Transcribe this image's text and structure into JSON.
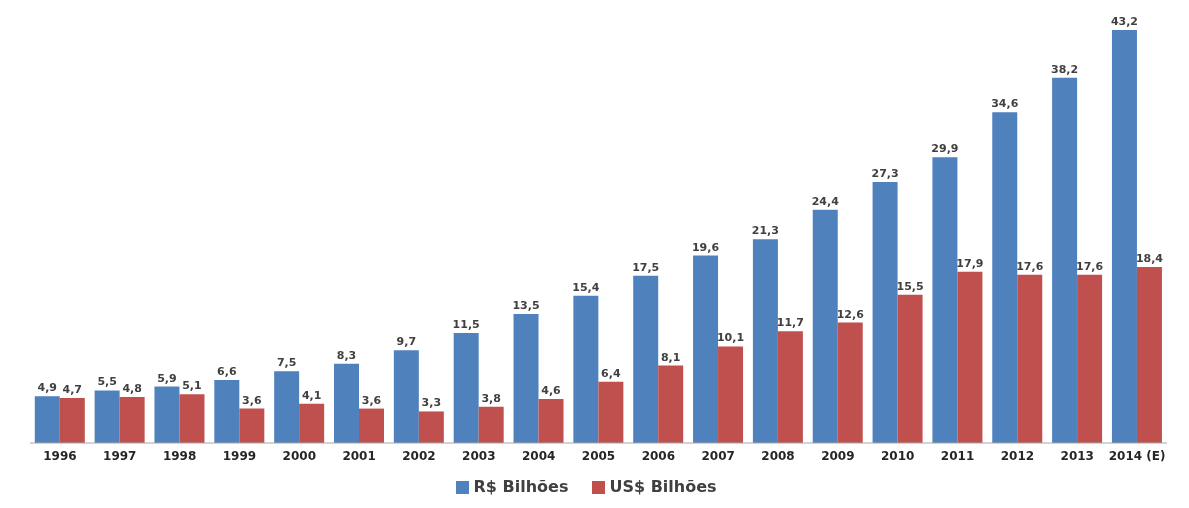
{
  "chart_data": {
    "type": "bar",
    "categories": [
      "1996",
      "1997",
      "1998",
      "1999",
      "2000",
      "2001",
      "2002",
      "2003",
      "2004",
      "2005",
      "2006",
      "2007",
      "2008",
      "2009",
      "2010",
      "2011",
      "2012",
      "2013",
      "2014 (E)"
    ],
    "series": [
      {
        "name": "R$ Bilhões",
        "color": "#4f81bd",
        "values": [
          4.9,
          5.5,
          5.9,
          6.6,
          7.5,
          8.3,
          9.7,
          11.5,
          13.5,
          15.4,
          17.5,
          19.6,
          21.3,
          24.4,
          27.3,
          29.9,
          34.6,
          38.2,
          43.2
        ],
        "value_labels": [
          "4,9",
          "5,5",
          "5,9",
          "6,6",
          "7,5",
          "8,3",
          "9,7",
          "11,5",
          "13,5",
          "15,4",
          "17,5",
          "19,6",
          "21,3",
          "24,4",
          "27,3",
          "29,9",
          "34,6",
          "38,2",
          "43,2"
        ]
      },
      {
        "name": "US$ Bilhões",
        "color": "#c0504d",
        "values": [
          4.7,
          4.8,
          5.1,
          3.6,
          4.1,
          3.6,
          3.3,
          3.8,
          4.6,
          6.4,
          8.1,
          10.1,
          11.7,
          12.6,
          15.5,
          17.9,
          17.6,
          17.6,
          18.4
        ],
        "value_labels": [
          "4,7",
          "4,8",
          "5,1",
          "3,6",
          "4,1",
          "3,6",
          "3,3",
          "3,8",
          "4,6",
          "6,4",
          "8,1",
          "10,1",
          "11,7",
          "12,6",
          "15,5",
          "17,9",
          "17,6",
          "17,6",
          "18,4"
        ]
      }
    ],
    "legend": "bottom",
    "grid": false
  }
}
